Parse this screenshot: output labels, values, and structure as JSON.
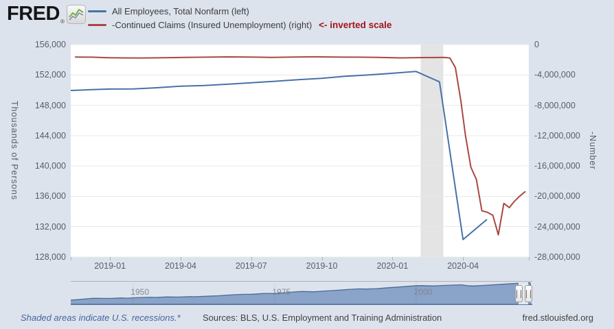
{
  "page": {
    "background": "#dde3ed"
  },
  "header": {
    "logo": {
      "text": "FRED",
      "registered_mark": "®",
      "icon": "fred-sparkline-icon"
    },
    "legend": [
      {
        "label": "All Employees, Total Nonfarm (left)",
        "color": "#4572a7"
      },
      {
        "label": "-Continued Claims (Insured Unemployment) (right)",
        "color": "#aa4643"
      }
    ],
    "annotation": {
      "text": "<- inverted scale",
      "color": "#a01418"
    }
  },
  "chart_data": {
    "type": "line",
    "plot_background": "#ffffff",
    "grid_color": "#e8e8e8",
    "recession_band": {
      "label": "U.S. recession (2020)",
      "start_year": 2020.1,
      "end_year": 2020.18,
      "color": "#e4e4e4"
    },
    "left_axis": {
      "label": "Thousands of Persons",
      "max": 156000,
      "min": 128000,
      "tick_values": [
        156000,
        152000,
        148000,
        144000,
        140000,
        136000,
        132000,
        128000
      ],
      "tick_labels": [
        "156,000",
        "152,000",
        "148,000",
        "144,000",
        "140,000",
        "136,000",
        "132,000",
        "128,000"
      ]
    },
    "right_axis": {
      "label": "-Number",
      "max": 0,
      "min": -28000000,
      "tick_values": [
        0,
        -4000000,
        -8000000,
        -12000000,
        -16000000,
        -20000000,
        -24000000,
        -28000000
      ],
      "tick_labels": [
        "0",
        "-4,000,000",
        "-8,000,000",
        "-12,000,000",
        "-16,000,000",
        "-20,000,000",
        "-24,000,000",
        "-28,000,000"
      ]
    },
    "x_axis": {
      "start_year": 2018.861,
      "end_year": 2020.483,
      "ticks": [
        {
          "year": 2019.0,
          "label": "2019-01"
        },
        {
          "year": 2019.25,
          "label": "2019-04"
        },
        {
          "year": 2019.5,
          "label": "2019-07"
        },
        {
          "year": 2019.75,
          "label": "2019-10"
        },
        {
          "year": 2020.0,
          "label": "2020-01"
        },
        {
          "year": 2020.25,
          "label": "2020-04"
        }
      ]
    },
    "series": [
      {
        "name": "All Employees, Total Nonfarm",
        "axis": "left",
        "units": "Thousands of Persons",
        "color": "#4572a7",
        "points": [
          [
            2018.8333,
            149916
          ],
          [
            2018.9167,
            150028
          ],
          [
            2019.0,
            150135
          ],
          [
            2019.0833,
            150160
          ],
          [
            2019.1667,
            150307
          ],
          [
            2019.25,
            150517
          ],
          [
            2019.3333,
            150601
          ],
          [
            2019.4167,
            150771
          ],
          [
            2019.5,
            150965
          ],
          [
            2019.5833,
            151160
          ],
          [
            2019.6667,
            151368
          ],
          [
            2019.75,
            151553
          ],
          [
            2019.8333,
            151814
          ],
          [
            2019.9167,
            151998
          ],
          [
            2020.0,
            152212
          ],
          [
            2020.0833,
            152463
          ],
          [
            2020.1667,
            151090
          ],
          [
            2020.25,
            130303
          ],
          [
            2020.3333,
            132912
          ]
        ]
      },
      {
        "name": "-Continued Claims (Insured Unemployment)",
        "axis": "right",
        "units": "-Number",
        "color": "#aa4643",
        "points": [
          [
            2018.8778,
            -1640000
          ],
          [
            2018.9361,
            -1660000
          ],
          [
            2018.9944,
            -1730000
          ],
          [
            2019.0528,
            -1760000
          ],
          [
            2019.1111,
            -1770000
          ],
          [
            2019.1889,
            -1740000
          ],
          [
            2019.2639,
            -1700000
          ],
          [
            2019.3417,
            -1660000
          ],
          [
            2019.4167,
            -1630000
          ],
          [
            2019.4944,
            -1650000
          ],
          [
            2019.5722,
            -1690000
          ],
          [
            2019.6472,
            -1640000
          ],
          [
            2019.7222,
            -1620000
          ],
          [
            2019.8,
            -1640000
          ],
          [
            2019.8778,
            -1660000
          ],
          [
            2019.9528,
            -1700000
          ],
          [
            2020.0278,
            -1760000
          ],
          [
            2020.1056,
            -1720000
          ],
          [
            2020.1833,
            -1700000
          ],
          [
            2020.2036,
            -1770000
          ],
          [
            2020.2231,
            -3060000
          ],
          [
            2020.2425,
            -7450000
          ],
          [
            2020.2583,
            -11910000
          ],
          [
            2020.2778,
            -16170000
          ],
          [
            2020.2972,
            -17770000
          ],
          [
            2020.3167,
            -21900000
          ],
          [
            2020.3361,
            -22100000
          ],
          [
            2020.3556,
            -22500000
          ],
          [
            2020.375,
            -25070000
          ],
          [
            2020.3944,
            -20930000
          ],
          [
            2020.4139,
            -21490000
          ],
          [
            2020.4306,
            -20700000
          ],
          [
            2020.45,
            -20000000
          ],
          [
            2020.4694,
            -19400000
          ]
        ]
      }
    ]
  },
  "slider": {
    "start_year": 1939,
    "end_year": 2020.5,
    "fill_color": "#8aa3c8",
    "line_color": "#4a6b96",
    "ticks": [
      {
        "year": 1950,
        "label": "1950"
      },
      {
        "year": 1975,
        "label": "1975"
      },
      {
        "year": 2000,
        "label": "2000"
      }
    ],
    "selected": {
      "start_year": 2018.861,
      "end_year": 2020.483
    },
    "value_max": 160000,
    "series_points": [
      [
        1939,
        29900
      ],
      [
        1940,
        32400
      ],
      [
        1941,
        36500
      ],
      [
        1943,
        42500
      ],
      [
        1945,
        41900
      ],
      [
        1946,
        41700
      ],
      [
        1948,
        44900
      ],
      [
        1949,
        43800
      ],
      [
        1951,
        47800
      ],
      [
        1953,
        50200
      ],
      [
        1954,
        49000
      ],
      [
        1956,
        52600
      ],
      [
        1958,
        51300
      ],
      [
        1960,
        54200
      ],
      [
        1961,
        54000
      ],
      [
        1963,
        57000
      ],
      [
        1965,
        60800
      ],
      [
        1967,
        65800
      ],
      [
        1969,
        70400
      ],
      [
        1970,
        71000
      ],
      [
        1971,
        71300
      ],
      [
        1973,
        76800
      ],
      [
        1975,
        77000
      ],
      [
        1977,
        82500
      ],
      [
        1979,
        89900
      ],
      [
        1980,
        90500
      ],
      [
        1982,
        88800
      ],
      [
        1984,
        94400
      ],
      [
        1986,
        99300
      ],
      [
        1988,
        105200
      ],
      [
        1990,
        109800
      ],
      [
        1991,
        108300
      ],
      [
        1993,
        110800
      ],
      [
        1995,
        117300
      ],
      [
        1997,
        122700
      ],
      [
        2000,
        131800
      ],
      [
        2001,
        132500
      ],
      [
        2003,
        129800
      ],
      [
        2005,
        134000
      ],
      [
        2008,
        138400
      ],
      [
        2009,
        132000
      ],
      [
        2010,
        129700
      ],
      [
        2012,
        133700
      ],
      [
        2015,
        141800
      ],
      [
        2017,
        146600
      ],
      [
        2019,
        150900
      ],
      [
        2020.0833,
        152500
      ],
      [
        2020.25,
        130300
      ],
      [
        2020.3333,
        132900
      ]
    ]
  },
  "footer": {
    "recession_note": "Shaded areas indicate U.S. recessions.*",
    "sources": "Sources: BLS, U.S. Employment and Training Administration",
    "site": "fred.stlouisfed.org"
  }
}
